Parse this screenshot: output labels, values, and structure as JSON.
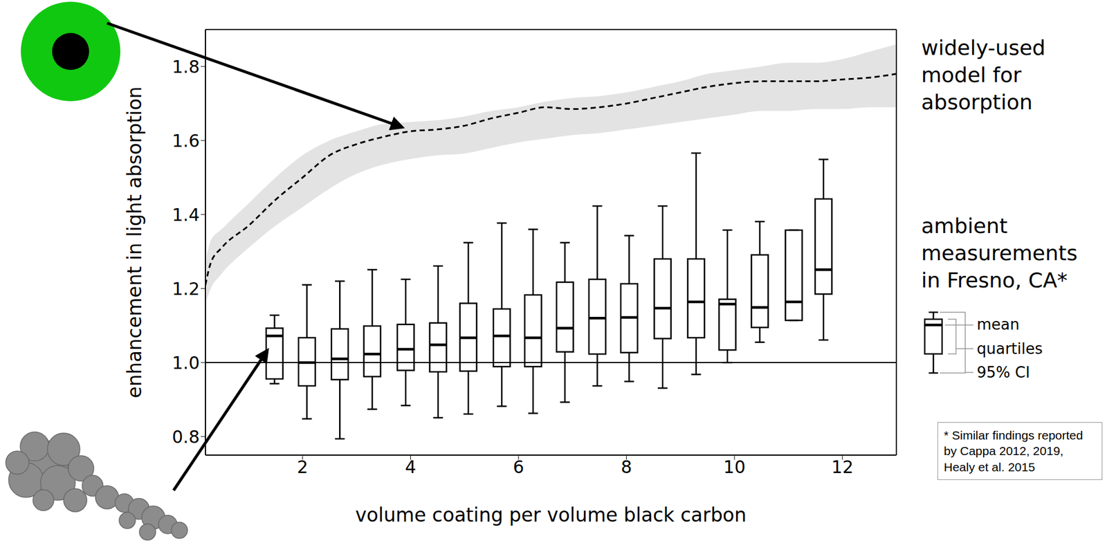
{
  "chart_data": {
    "type": "box",
    "x_label": "volume coating per volume black carbon",
    "y_label": "enhancement in light absorption",
    "xlim": [
      0.2,
      13
    ],
    "xticks": [
      2,
      4,
      6,
      8,
      10,
      12
    ],
    "ylim": [
      0.75,
      1.9
    ],
    "yticks": [
      0.8,
      {
        "value": 1,
        "label": "1.0"
      },
      1.2,
      1.4,
      1.6,
      1.8
    ],
    "grid": false,
    "reference_y": 1,
    "series": [
      {
        "name": "widely-used model for absorption",
        "type": "line",
        "line_style": "dashed",
        "color": "#000000",
        "x": [
          0.2,
          0.3,
          0.5,
          1,
          1.5,
          2,
          2.5,
          3,
          3.5,
          4,
          4.5,
          5,
          5.5,
          6,
          6.5,
          7,
          7.5,
          8,
          8.5,
          9,
          9.5,
          10,
          10.5,
          11,
          11.5,
          12,
          12.5,
          13
        ],
        "values": [
          1.21,
          1.27,
          1.31,
          1.37,
          1.44,
          1.5,
          1.56,
          1.59,
          1.61,
          1.625,
          1.63,
          1.64,
          1.66,
          1.675,
          1.69,
          1.685,
          1.69,
          1.7,
          1.715,
          1.73,
          1.745,
          1.755,
          1.76,
          1.76,
          1.76,
          1.765,
          1.77,
          1.78
        ],
        "lower": [
          1.16,
          1.2,
          1.24,
          1.31,
          1.37,
          1.42,
          1.47,
          1.51,
          1.535,
          1.55,
          1.56,
          1.565,
          1.58,
          1.595,
          1.605,
          1.615,
          1.62,
          1.63,
          1.64,
          1.65,
          1.66,
          1.67,
          1.68,
          1.68,
          1.685,
          1.685,
          1.69,
          1.69
        ],
        "upper": [
          1.27,
          1.33,
          1.36,
          1.43,
          1.5,
          1.56,
          1.6,
          1.625,
          1.645,
          1.65,
          1.655,
          1.665,
          1.68,
          1.69,
          1.705,
          1.715,
          1.72,
          1.73,
          1.745,
          1.76,
          1.78,
          1.79,
          1.8,
          1.81,
          1.81,
          1.82,
          1.84,
          1.86
        ]
      },
      {
        "name": "ambient measurements in Fresno, CA*",
        "type": "box",
        "color": "#000000",
        "x": [
          1.48,
          2.08,
          2.69,
          3.29,
          3.91,
          4.51,
          5.07,
          5.69,
          6.27,
          6.86,
          7.46,
          8.05,
          8.67,
          9.29,
          9.87,
          10.47,
          11.1,
          11.65
        ],
        "mean": [
          1.072,
          1.0,
          1.01,
          1.023,
          1.036,
          1.048,
          1.067,
          1.072,
          1.067,
          1.093,
          1.12,
          1.122,
          1.147,
          1.164,
          1.158,
          1.149,
          1.164,
          1.251
        ],
        "q1": [
          0.956,
          0.937,
          0.954,
          0.962,
          0.979,
          0.975,
          0.977,
          0.989,
          0.989,
          1.029,
          1.023,
          1.027,
          1.065,
          1.067,
          1.034,
          1.095,
          1.114,
          1.185
        ],
        "q3": [
          1.093,
          1.067,
          1.091,
          1.099,
          1.103,
          1.107,
          1.16,
          1.145,
          1.183,
          1.217,
          1.225,
          1.213,
          1.28,
          1.28,
          1.171,
          1.291,
          1.358,
          1.442
        ],
        "low": [
          0.943,
          0.848,
          0.794,
          0.874,
          0.884,
          0.851,
          0.861,
          0.882,
          0.863,
          0.893,
          0.937,
          0.949,
          0.931,
          0.968,
          1.0,
          1.055,
          1.114,
          1.061
        ],
        "high": [
          1.128,
          1.21,
          1.22,
          1.251,
          1.225,
          1.261,
          1.324,
          1.377,
          1.36,
          1.324,
          1.423,
          1.343,
          1.423,
          1.566,
          1.358,
          1.381,
          1.358,
          1.549
        ]
      }
    ],
    "box_legend": [
      "mean",
      "quartiles",
      "95% CI"
    ],
    "footnote": "* Similar findings reported by Cappa 2012, 2019, Healy et al. 2015"
  }
}
